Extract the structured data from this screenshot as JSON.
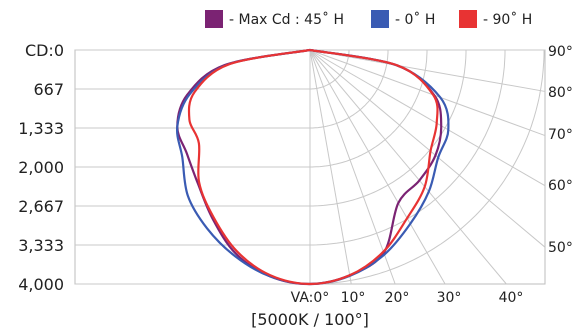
{
  "chart_data": {
    "type": "polar-intensity",
    "subtitle": "[5000K / 100°]",
    "radial_axis": {
      "ticks": [
        "CD:0",
        "667",
        "1,333",
        "2,000",
        "2,667",
        "3,333",
        "4,000"
      ],
      "range": [
        0,
        4000
      ]
    },
    "angle_axis_bottom": [
      "VA:0°",
      "10°",
      "20°",
      "30°",
      "40°"
    ],
    "angle_axis_right": [
      "90°",
      "80°",
      "70°",
      "60°",
      "50°"
    ],
    "angles_deg": [
      0,
      10,
      20,
      30,
      40,
      50,
      60,
      70,
      80,
      90
    ],
    "series": [
      {
        "name": "- Max Cd : 45˚ H",
        "color": "#7b2373",
        "left": [
          4000,
          3930,
          3705,
          3330,
          2980,
          2750,
          2620,
          2230,
          1480,
          0
        ],
        "right": [
          4000,
          3910,
          3690,
          3020,
          2910,
          2800,
          2590,
          2260,
          1510,
          0
        ]
      },
      {
        "name": "- 0˚ H",
        "color": "#3a5bb3",
        "left": [
          4000,
          3930,
          3750,
          3520,
          3250,
          2850,
          2620,
          2180,
          1420,
          0
        ],
        "right": [
          4000,
          3920,
          3720,
          3430,
          3160,
          2860,
          2730,
          2370,
          1500,
          0
        ]
      },
      {
        "name": "- 90˚ H",
        "color": "#e83333",
        "left": [
          4000,
          3910,
          3660,
          3300,
          2950,
          2480,
          2380,
          2100,
          1400,
          0
        ],
        "right": [
          4000,
          3910,
          3670,
          3320,
          3050,
          2690,
          2500,
          2240,
          1510,
          0
        ]
      }
    ],
    "legend_position": "top-right",
    "grid": true
  }
}
